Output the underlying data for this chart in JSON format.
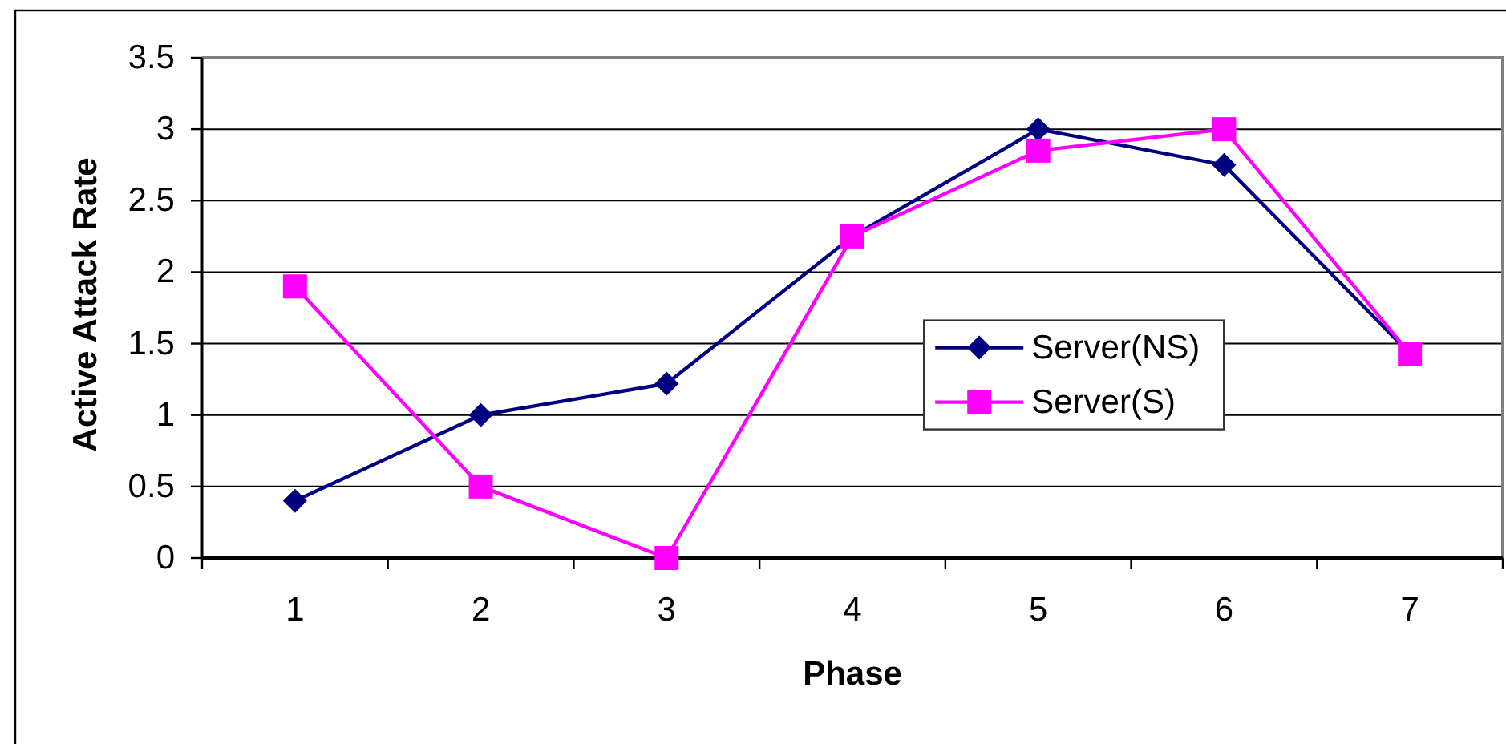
{
  "chart_data": {
    "type": "line",
    "xlabel": "Phase",
    "ylabel": "Active Attack Rate",
    "categories": [
      "1",
      "2",
      "3",
      "4",
      "5",
      "6",
      "7"
    ],
    "series": [
      {
        "name": "Server(NS)",
        "color": "#000080",
        "marker": "diamond",
        "values": [
          0.4,
          1.0,
          1.22,
          2.25,
          3.0,
          2.75,
          1.43
        ]
      },
      {
        "name": "Server(S)",
        "color": "#ff00ff",
        "marker": "square",
        "values": [
          1.9,
          0.5,
          0.0,
          2.25,
          2.85,
          3.0,
          1.43
        ]
      }
    ],
    "ylim": [
      0,
      3.5
    ],
    "yticks": [
      0,
      0.5,
      1,
      1.5,
      2,
      2.5,
      3,
      3.5
    ],
    "grid": "y",
    "legend": "right"
  }
}
